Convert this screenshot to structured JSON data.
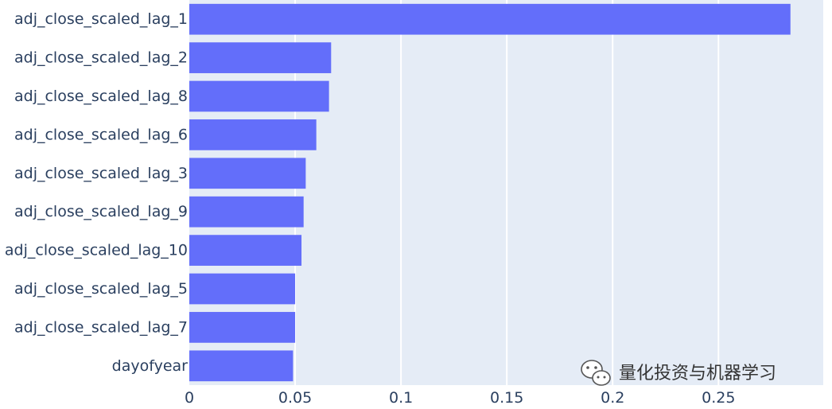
{
  "chart_data": {
    "type": "bar",
    "orientation": "horizontal",
    "categories": [
      "adj_close_scaled_lag_1",
      "adj_close_scaled_lag_2",
      "adj_close_scaled_lag_8",
      "adj_close_scaled_lag_6",
      "adj_close_scaled_lag_3",
      "adj_close_scaled_lag_9",
      "adj_close_scaled_lag_10",
      "adj_close_scaled_lag_5",
      "adj_close_scaled_lag_7",
      "dayofyear"
    ],
    "values": [
      0.284,
      0.067,
      0.066,
      0.06,
      0.055,
      0.054,
      0.053,
      0.05,
      0.05,
      0.049
    ],
    "xlim": [
      0,
      0.2995
    ],
    "xticks": [
      0,
      0.05,
      0.1,
      0.15,
      0.2,
      0.25
    ],
    "xtick_labels": [
      "0",
      "0.05",
      "0.1",
      "0.15",
      "0.2",
      "0.25"
    ],
    "title": "",
    "xlabel": "",
    "ylabel": "",
    "grid": true,
    "bar_color": "#636efa",
    "plot_background": "#e5ecf6",
    "grid_color": "#ffffff"
  },
  "watermark": {
    "text": "量化投资与机器学习",
    "icon": "wechat-icon"
  }
}
